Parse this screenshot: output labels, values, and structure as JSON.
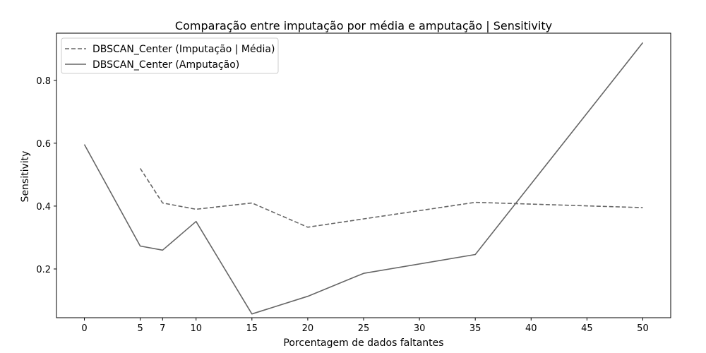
{
  "chart_data": {
    "type": "line",
    "title": "Comparação entre imputação por média e amputação | Sensitivity",
    "xlabel": "Porcentagem de dados faltantes",
    "ylabel": "Sensitivity",
    "xlim": [
      -2.5,
      52.5
    ],
    "ylim": [
      0.045,
      0.95
    ],
    "xticks": [
      0,
      5,
      7,
      10,
      15,
      20,
      25,
      30,
      35,
      40,
      45,
      50
    ],
    "yticks": [
      0.2,
      0.4,
      0.6,
      0.8
    ],
    "ytick_labels": [
      "0.2",
      "0.4",
      "0.6",
      "0.8"
    ],
    "legend_position": "top-left",
    "series": [
      {
        "name": "DBSCAN_Center (Imputação | Média)",
        "style": "dashed",
        "color": "#666666",
        "x": [
          5,
          7,
          10,
          15,
          20,
          35,
          50
        ],
        "y": [
          0.52,
          0.41,
          0.39,
          0.41,
          0.333,
          0.412,
          0.395
        ]
      },
      {
        "name": "DBSCAN_Center (Amputação)",
        "style": "solid",
        "color": "#666666",
        "x": [
          0,
          5,
          7,
          10,
          15,
          20,
          25,
          35,
          50
        ],
        "y": [
          0.596,
          0.273,
          0.26,
          0.351,
          0.057,
          0.113,
          0.186,
          0.246,
          0.92
        ]
      }
    ]
  }
}
